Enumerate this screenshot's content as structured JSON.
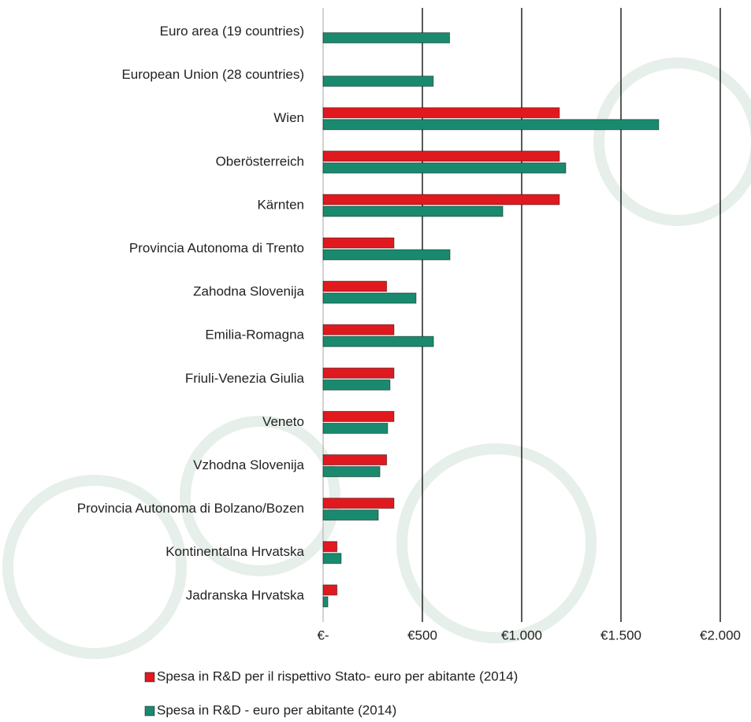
{
  "chart_data": {
    "type": "hbar",
    "categories": [
      "Euro area (19 countries)",
      "European Union (28 countries)",
      "Wien",
      "Oberösterreich",
      "Kärnten",
      "Provincia Autonoma di Trento",
      "Zahodna Slovenija",
      "Emilia-Romagna",
      "Friuli-Venezia Giulia",
      "Veneto",
      "Vzhodna Slovenija",
      "Provincia Autonoma di Bolzano/Bozen",
      "Kontinentalna Hrvatska",
      "Jadranska Hrvatska"
    ],
    "series": [
      {
        "name": "Spesa in R&D per il rispettivo Stato- euro per abitante (2014)",
        "color": "#e0191f",
        "values": [
          null,
          null,
          1190,
          1190,
          1190,
          357,
          320,
          357,
          357,
          357,
          320,
          357,
          70,
          70
        ]
      },
      {
        "name": "Spesa in R&D - euro per abitante (2014)",
        "color": "#1a8a6e",
        "values": [
          637,
          555,
          1690,
          1222,
          905,
          639,
          468,
          556,
          337,
          325,
          286,
          278,
          91,
          24
        ]
      }
    ],
    "xlim": [
      0,
      2000
    ],
    "xticks": [
      {
        "value": 0,
        "label": "€-"
      },
      {
        "value": 500,
        "label": "€500"
      },
      {
        "value": 1000,
        "label": "€1.000"
      },
      {
        "value": 1500,
        "label": "€1.500"
      },
      {
        "value": 2000,
        "label": "€2.000"
      }
    ],
    "grid": true,
    "legend": "bottom"
  }
}
